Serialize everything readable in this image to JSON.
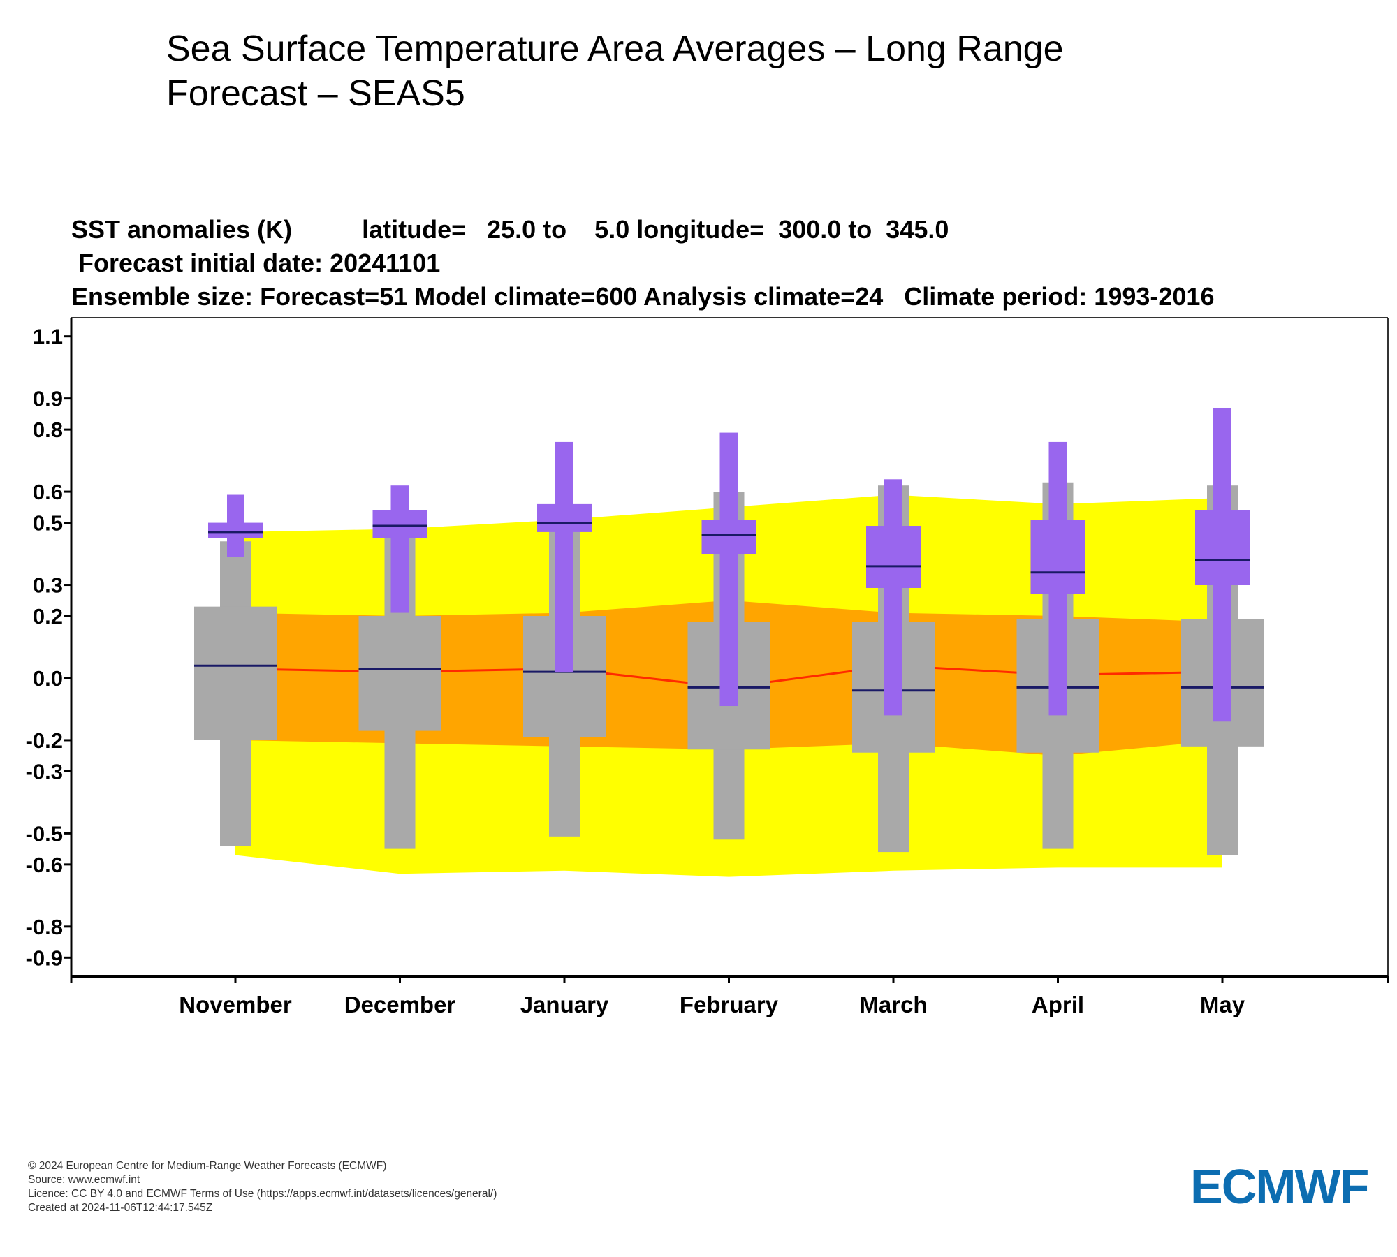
{
  "page": {
    "title": "Sea Surface Temperature Area Averages – Long Range Forecast – SEAS5"
  },
  "chart_header": {
    "line1": "SST anomalies (K)          latitude=   25.0 to    5.0 longitude=  300.0 to  345.0",
    "line2": " Forecast initial date: 20241101",
    "line3": "Ensemble size: Forecast=51 Model climate=600 Analysis climate=24   Climate period: 1993-2016"
  },
  "footer": {
    "copyright": "© 2024 European Centre for Medium-Range Weather Forecasts (ECMWF)",
    "source": "Source: www.ecmwf.int",
    "licence": "Licence: CC BY 4.0 and ECMWF Terms of Use (https://apps.ecmwf.int/datasets/licences/general/)",
    "created": "Created at 2024-11-06T12:44:17.545Z"
  },
  "logo": {
    "text": "ECMWF",
    "color": "#0c6db1"
  },
  "chart_data": {
    "type": "box",
    "title": "SST anomalies (K)",
    "xlabel": "",
    "ylabel": "",
    "categories": [
      "November",
      "December",
      "January",
      "February",
      "March",
      "April",
      "May"
    ],
    "y_ticks": [
      1.1,
      0.9,
      0.8,
      0.6,
      0.5,
      0.3,
      0.2,
      0.0,
      -0.2,
      -0.3,
      -0.5,
      -0.6,
      -0.8,
      -0.9
    ],
    "y_tick_labels": [
      "1.1",
      "0.9",
      "0.8",
      "0.6",
      "0.5",
      "0.3",
      "0.2",
      "0.0",
      "-0.2",
      "-0.3",
      "-0.5",
      "-0.6",
      "-0.8",
      "-0.9"
    ],
    "ylim": [
      -0.96,
      1.16
    ],
    "colors": {
      "outer_band": "#ffff00",
      "inner_band": "#ffa500",
      "analysis_line": "#ff2a00",
      "model_climate_box": "#a9a9a9",
      "forecast_box": "#9966ee",
      "median": "#1a1a66",
      "axis": "#000000"
    },
    "analysis_climate": {
      "outer_upper": [
        0.47,
        0.48,
        0.51,
        0.55,
        0.59,
        0.56,
        0.58
      ],
      "outer_lower": [
        -0.57,
        -0.63,
        -0.62,
        -0.64,
        -0.62,
        -0.61,
        -0.61
      ],
      "inner_upper": [
        0.21,
        0.2,
        0.21,
        0.25,
        0.21,
        0.2,
        0.18
      ],
      "inner_lower": [
        -0.2,
        -0.21,
        -0.22,
        -0.23,
        -0.21,
        -0.25,
        -0.2
      ],
      "mean": [
        0.03,
        0.02,
        0.03,
        -0.03,
        0.04,
        0.01,
        0.02
      ]
    },
    "model_climate": {
      "whisker_high": [
        0.44,
        0.46,
        0.48,
        0.6,
        0.62,
        0.63,
        0.62
      ],
      "q3": [
        0.23,
        0.2,
        0.2,
        0.18,
        0.18,
        0.19,
        0.19
      ],
      "median": [
        0.04,
        0.03,
        0.02,
        -0.03,
        -0.04,
        -0.03,
        -0.03
      ],
      "q1": [
        -0.2,
        -0.17,
        -0.19,
        -0.23,
        -0.24,
        -0.24,
        -0.22
      ],
      "whisker_low": [
        -0.54,
        -0.55,
        -0.51,
        -0.52,
        -0.56,
        -0.55,
        -0.57
      ]
    },
    "forecast": {
      "whisker_high": [
        0.59,
        0.62,
        0.76,
        0.79,
        0.64,
        0.76,
        0.87
      ],
      "q3": [
        0.5,
        0.54,
        0.56,
        0.51,
        0.49,
        0.51,
        0.54
      ],
      "median": [
        0.47,
        0.49,
        0.5,
        0.46,
        0.36,
        0.34,
        0.38
      ],
      "q1": [
        0.45,
        0.45,
        0.47,
        0.4,
        0.29,
        0.27,
        0.3
      ],
      "whisker_low": [
        0.39,
        0.21,
        0.02,
        -0.09,
        -0.12,
        -0.12,
        -0.14
      ]
    }
  }
}
